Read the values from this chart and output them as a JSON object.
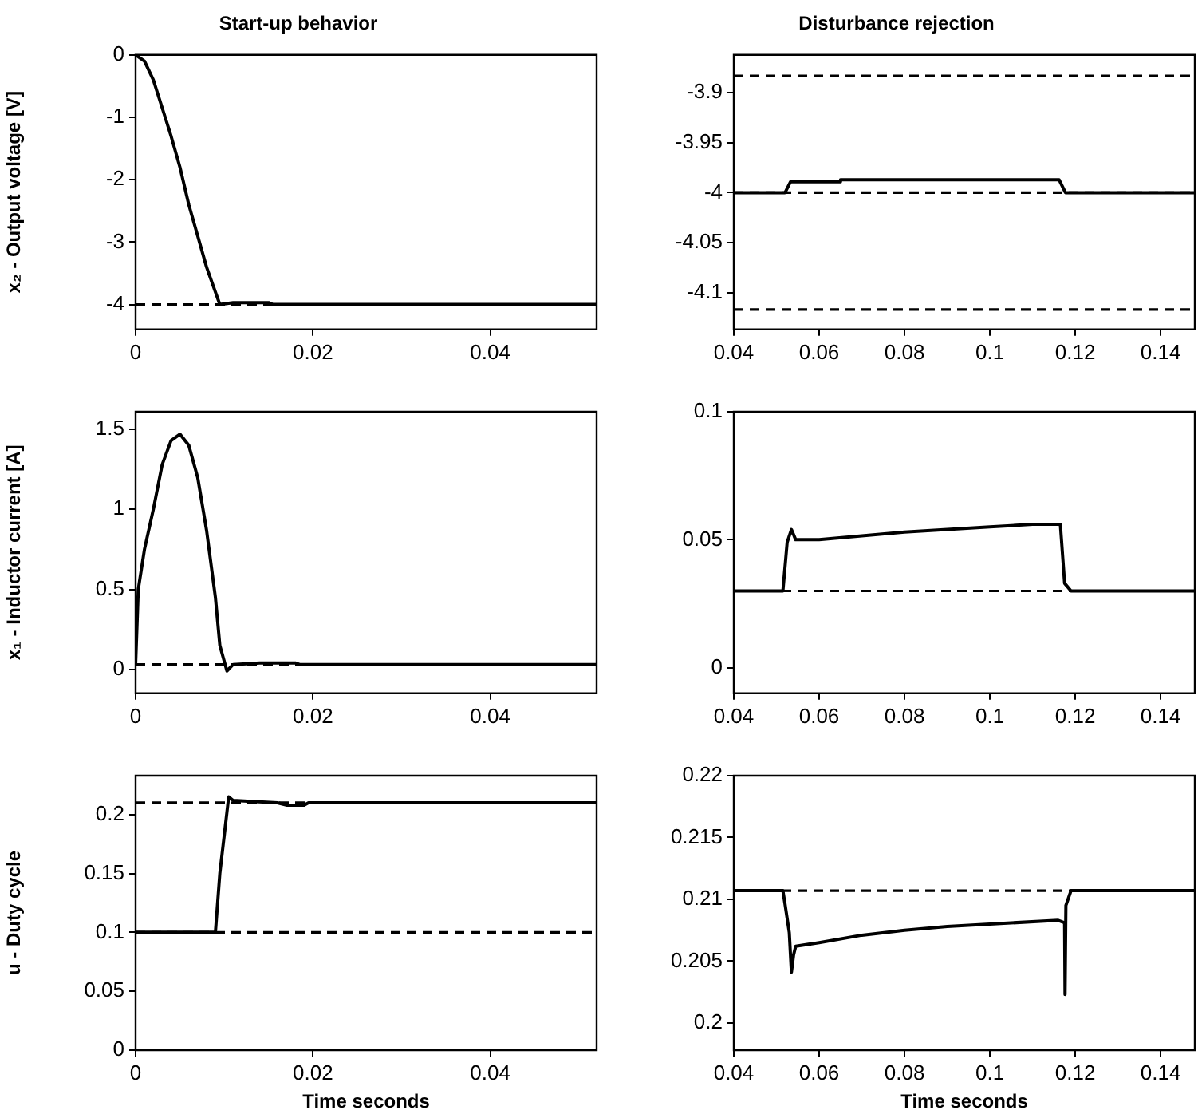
{
  "chart_data": [
    {
      "type": "line",
      "title": "Start-up behavior",
      "ylabel": "x₂ - Output voltage [V]",
      "xlim": [
        0,
        0.052
      ],
      "xticks": [
        0,
        0.02,
        0.04
      ],
      "ylim": [
        -4.4,
        0
      ],
      "yticks": [
        -4,
        -3,
        -2,
        -1,
        0
      ],
      "ref_lines": [
        {
          "axis": "y",
          "value": -4,
          "line_style": "dashed"
        }
      ],
      "series": [
        {
          "color": "#000000",
          "x": [
            0,
            0.001,
            0.002,
            0.003,
            0.004,
            0.005,
            0.006,
            0.007,
            0.008,
            0.009,
            0.0095,
            0.011,
            0.015,
            0.0155,
            0.052
          ],
          "values": [
            0,
            -0.1,
            -0.4,
            -0.85,
            -1.3,
            -1.8,
            -2.4,
            -2.9,
            -3.4,
            -3.8,
            -4,
            -3.97,
            -3.97,
            -4,
            -4
          ]
        }
      ]
    },
    {
      "type": "line",
      "title": "Disturbance rejection",
      "xlim": [
        0.04,
        0.148
      ],
      "xticks": [
        0.04,
        0.06,
        0.08,
        0.1,
        0.12,
        0.14
      ],
      "ylim": [
        -4.137,
        -3.862
      ],
      "yticks": [
        -4.1,
        -4.05,
        -4,
        -3.95,
        -3.9
      ],
      "ref_lines": [
        {
          "axis": "y",
          "value": -3.883,
          "line_style": "dashed"
        },
        {
          "axis": "y",
          "value": -4,
          "line_style": "dashed"
        },
        {
          "axis": "y",
          "value": -4.117,
          "line_style": "dashed"
        }
      ],
      "series": [
        {
          "color": "#000000",
          "x": [
            0.04,
            0.052,
            0.0533,
            0.0649,
            0.065,
            0.1162,
            0.1177,
            0.148
          ],
          "values": [
            -4,
            -4,
            -3.989,
            -3.989,
            -3.987,
            -3.987,
            -4,
            -4
          ]
        }
      ]
    },
    {
      "type": "line",
      "ylabel": "x₁ - Inductor current [A]",
      "xlim": [
        0,
        0.052
      ],
      "xticks": [
        0,
        0.02,
        0.04
      ],
      "ylim": [
        -0.15,
        1.61
      ],
      "yticks": [
        0,
        0.5,
        1,
        1.5
      ],
      "ref_lines": [
        {
          "axis": "y",
          "value": 0.03,
          "line_style": "dashed"
        }
      ],
      "series": [
        {
          "color": "#000000",
          "x": [
            0,
            0.0003,
            0.001,
            0.002,
            0.003,
            0.004,
            0.005,
            0.006,
            0.007,
            0.008,
            0.009,
            0.0095,
            0.0103,
            0.011,
            0.014,
            0.018,
            0.0185,
            0.052
          ],
          "values": [
            0.03,
            0.5,
            0.75,
            1,
            1.28,
            1.43,
            1.47,
            1.4,
            1.2,
            0.87,
            0.45,
            0.15,
            -0.01,
            0.03,
            0.04,
            0.04,
            0.03,
            0.03
          ]
        }
      ]
    },
    {
      "type": "line",
      "xlim": [
        0.04,
        0.148
      ],
      "xticks": [
        0.04,
        0.06,
        0.08,
        0.1,
        0.12,
        0.14
      ],
      "ylim": [
        -0.01,
        0.1
      ],
      "yticks": [
        0,
        0.05,
        0.1
      ],
      "ref_lines": [
        {
          "axis": "y",
          "value": 0.03,
          "line_style": "dashed"
        }
      ],
      "series": [
        {
          "color": "#000000",
          "x": [
            0.04,
            0.0515,
            0.0525,
            0.0535,
            0.0545,
            0.06,
            0.08,
            0.1,
            0.11,
            0.1165,
            0.1175,
            0.119,
            0.148
          ],
          "values": [
            0.03,
            0.03,
            0.049,
            0.054,
            0.05,
            0.05,
            0.053,
            0.055,
            0.056,
            0.056,
            0.033,
            0.03,
            0.03
          ]
        }
      ]
    },
    {
      "type": "line",
      "ylabel": "u - Duty cycle",
      "xlabel": "Time seconds",
      "xlim": [
        0,
        0.052
      ],
      "xticks": [
        0,
        0.02,
        0.04
      ],
      "ylim": [
        0,
        0.233
      ],
      "yticks": [
        0,
        0.05,
        0.1,
        0.15,
        0.2
      ],
      "ref_lines": [
        {
          "axis": "y",
          "value": 0.21,
          "line_style": "dashed"
        },
        {
          "axis": "y",
          "value": 0.1,
          "line_style": "dashed"
        }
      ],
      "series": [
        {
          "color": "#000000",
          "x": [
            0,
            0.009,
            0.0095,
            0.0105,
            0.011,
            0.016,
            0.017,
            0.019,
            0.0195,
            0.052
          ],
          "values": [
            0.1,
            0.1,
            0.15,
            0.215,
            0.212,
            0.21,
            0.208,
            0.208,
            0.21,
            0.21
          ]
        }
      ]
    },
    {
      "type": "line",
      "xlabel": "Time seconds",
      "xlim": [
        0.04,
        0.148
      ],
      "xticks": [
        0.04,
        0.06,
        0.08,
        0.1,
        0.12,
        0.14
      ],
      "ylim": [
        0.1978,
        0.22
      ],
      "yticks": [
        0.2,
        0.205,
        0.21,
        0.215,
        0.22
      ],
      "ref_lines": [
        {
          "axis": "y",
          "value": 0.2107,
          "line_style": "dashed"
        }
      ],
      "series": [
        {
          "color": "#000000",
          "x": [
            0.04,
            0.0515,
            0.052,
            0.053,
            0.0535,
            0.054,
            0.0545,
            0.06,
            0.07,
            0.08,
            0.09,
            0.1,
            0.116,
            0.1175,
            0.1176,
            0.1178,
            0.119,
            0.148
          ],
          "values": [
            0.2107,
            0.2107,
            0.2096,
            0.2073,
            0.2041,
            0.2055,
            0.2062,
            0.2065,
            0.2071,
            0.2075,
            0.2078,
            0.208,
            0.2083,
            0.2081,
            0.2023,
            0.2095,
            0.2107,
            0.2107
          ]
        }
      ]
    }
  ]
}
